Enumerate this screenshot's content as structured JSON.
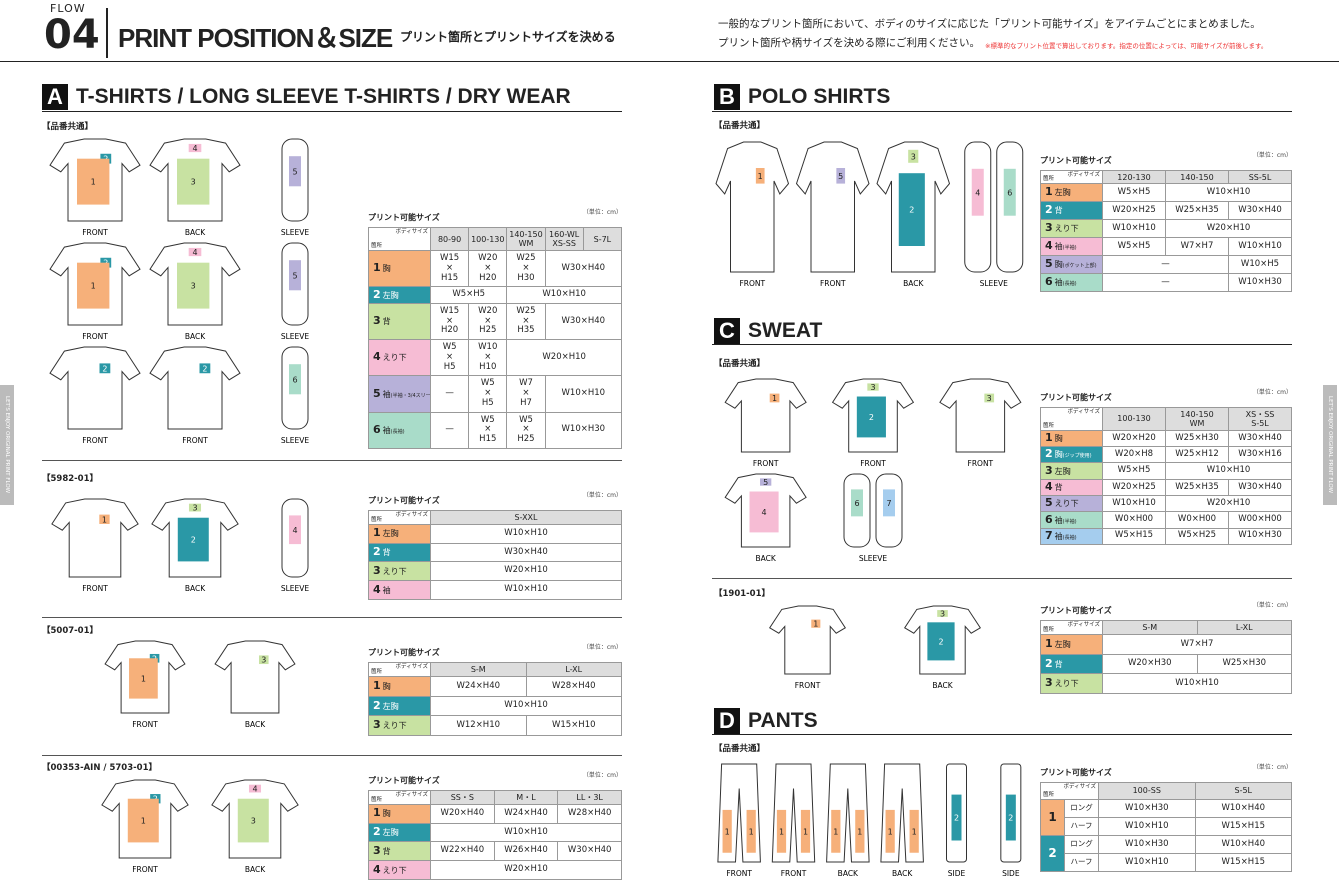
{
  "header": {
    "flow": "FLOW",
    "number": "04",
    "title": "PRINT POSITION＆SIZE",
    "subtitle": "プリント箇所とプリントサイズを決める",
    "description": [
      "一般的なプリント箇所において、ボディのサイズに応じた「プリント可能サイズ」をアイテムごとにまとめました。",
      "プリント箇所や柄サイズを決める際にご利用ください。"
    ],
    "note": "※標準的なプリント位置で算出しております。指定の位置によっては、可能サイズが前後します。"
  },
  "side_tab": "LET'S ENJOY ORIGINAL PRINT FLOW",
  "colors": {
    "1": "#f6b07a",
    "2": "#2a98a6",
    "3": "#c8e2a2",
    "4": "#f6bcd4",
    "5": "#b7b1d9",
    "6": "#a9dcc9",
    "7": "#a5cdee"
  },
  "sections": [
    {
      "letter": "A",
      "title": "T-SHIRTS / LONG SLEEVE T-SHIRTS / DRY WEAR",
      "groups": [
        {
          "label": "【品番共通】",
          "figures": [
            {
              "label": "FRONT",
              "marks": [
                "2",
                "1"
              ]
            },
            {
              "label": "BACK",
              "marks": [
                "4",
                "3"
              ]
            },
            {
              "label": "SLEEVE",
              "marks": [
                "5"
              ]
            },
            {
              "label": "FRONT",
              "marks": [
                "2",
                "1"
              ]
            },
            {
              "label": "BACK",
              "marks": [
                "4",
                "3"
              ]
            },
            {
              "label": "SLEEVE",
              "marks": [
                "5"
              ]
            },
            {
              "label": "FRONT",
              "marks": [
                "2"
              ]
            },
            {
              "label": "FRONT",
              "marks": [
                "2"
              ]
            },
            {
              "label": "SLEEVE",
              "marks": [
                "6"
              ]
            }
          ],
          "table": {
            "caption": "プリント可能サイズ",
            "unit": "（単位：cm）",
            "corner_top": "ボディサイズ",
            "corner_bottom": "箇所",
            "columns": [
              "80-90",
              "100-130",
              "140-150\nWM",
              "160-WL\nXS-SS",
              "S-7L"
            ],
            "rows": [
              {
                "no": "1",
                "name": "胸",
                "cells": [
                  "W15\n×\nH15",
                  "W20\n×\nH20",
                  "W25\n×\nH30",
                  {
                    "text": "W30×H40",
                    "span": 2
                  }
                ]
              },
              {
                "no": "2",
                "name": "左胸",
                "cells": [
                  {
                    "text": "W5×H5",
                    "span": 2
                  },
                  {
                    "text": "W10×H10",
                    "span": 3
                  }
                ]
              },
              {
                "no": "3",
                "name": "背",
                "cells": [
                  "W15\n×\nH20",
                  "W20\n×\nH25",
                  "W25\n×\nH35",
                  {
                    "text": "W30×H40",
                    "span": 2
                  }
                ]
              },
              {
                "no": "4",
                "name": "えり下",
                "cells": [
                  "W5\n×\nH5",
                  "W10\n×\nH10",
                  {
                    "text": "W20×H10",
                    "span": 3
                  }
                ]
              },
              {
                "no": "5",
                "name": "袖",
                "note": "(半袖・3/4スリーブ)",
                "cells": [
                  "—",
                  "W5\n×\nH5",
                  "W7\n×\nH7",
                  {
                    "text": "W10×H10",
                    "span": 2
                  }
                ]
              },
              {
                "no": "6",
                "name": "袖",
                "note": "(長袖)",
                "cells": [
                  "—",
                  "W5\n×\nH15",
                  "W5\n×\nH25",
                  {
                    "text": "W10×H30",
                    "span": 2
                  }
                ]
              }
            ]
          }
        },
        {
          "label": "【5982-01】",
          "figures": [
            {
              "label": "FRONT",
              "marks": [
                "1"
              ]
            },
            {
              "label": "BACK",
              "marks": [
                "3",
                "2"
              ]
            },
            {
              "label": "SLEEVE",
              "marks": [
                "4"
              ]
            }
          ],
          "table": {
            "caption": "プリント可能サイズ",
            "unit": "（単位：cm）",
            "corner_top": "ボディサイズ",
            "corner_bottom": "箇所",
            "columns": [
              "S-XXL"
            ],
            "rows": [
              {
                "no": "1",
                "name": "左胸",
                "cells": [
                  "W10×H10"
                ]
              },
              {
                "no": "2",
                "name": "背",
                "cells": [
                  "W30×H40"
                ]
              },
              {
                "no": "3",
                "name": "えり下",
                "cells": [
                  "W20×H10"
                ]
              },
              {
                "no": "4",
                "name": "袖",
                "cells": [
                  "W10×H10"
                ]
              }
            ]
          }
        },
        {
          "label": "【5007-01】",
          "figures": [
            {
              "label": "FRONT",
              "marks": [
                "2",
                "1"
              ]
            },
            {
              "label": "BACK",
              "marks": [
                "3"
              ]
            }
          ],
          "table": {
            "caption": "プリント可能サイズ",
            "unit": "（単位：cm）",
            "corner_top": "ボディサイズ",
            "corner_bottom": "箇所",
            "columns": [
              "S-M",
              "L-XL"
            ],
            "rows": [
              {
                "no": "1",
                "name": "胸",
                "cells": [
                  "W24×H40",
                  "W28×H40"
                ]
              },
              {
                "no": "2",
                "name": "左胸",
                "cells": [
                  {
                    "text": "W10×H10",
                    "span": 2
                  }
                ]
              },
              {
                "no": "3",
                "name": "えり下",
                "cells": [
                  "W12×H10",
                  "W15×H10"
                ]
              }
            ]
          }
        },
        {
          "label": "【00353-AIN / 5703-01】",
          "figures": [
            {
              "label": "FRONT",
              "marks": [
                "2",
                "1"
              ]
            },
            {
              "label": "BACK",
              "marks": [
                "4",
                "3"
              ]
            }
          ],
          "table": {
            "caption": "プリント可能サイズ",
            "unit": "（単位：cm）",
            "corner_top": "ボディサイズ",
            "corner_bottom": "箇所",
            "columns": [
              "SS・S",
              "M・L",
              "LL・3L"
            ],
            "rows": [
              {
                "no": "1",
                "name": "胸",
                "cells": [
                  "W20×H40",
                  "W24×H40",
                  "W28×H40"
                ]
              },
              {
                "no": "2",
                "name": "左胸",
                "cells": [
                  {
                    "text": "W10×H10",
                    "span": 3
                  }
                ]
              },
              {
                "no": "3",
                "name": "背",
                "cells": [
                  "W22×H40",
                  "W26×H40",
                  "W30×H40"
                ]
              },
              {
                "no": "4",
                "name": "えり下",
                "cells": [
                  {
                    "text": "W20×H10",
                    "span": 3
                  }
                ]
              }
            ]
          }
        }
      ]
    },
    {
      "letter": "B",
      "title": "POLO SHIRTS",
      "groups": [
        {
          "label": "【品番共通】",
          "figures": [
            {
              "label": "FRONT",
              "marks": [
                "1"
              ]
            },
            {
              "label": "FRONT",
              "marks": [
                "5"
              ]
            },
            {
              "label": "BACK",
              "marks": [
                "3",
                "2"
              ]
            },
            {
              "label": "SLEEVE",
              "marks": [
                "4",
                "6"
              ]
            }
          ],
          "table": {
            "caption": "プリント可能サイズ",
            "unit": "（単位：cm）",
            "corner_top": "ボディサイズ",
            "corner_bottom": "箇所",
            "columns": [
              "120-130",
              "140-150",
              "SS-5L"
            ],
            "rows": [
              {
                "no": "1",
                "name": "左胸",
                "cells": [
                  "W5×H5",
                  {
                    "text": "W10×H10",
                    "span": 2
                  }
                ]
              },
              {
                "no": "2",
                "name": "背",
                "cells": [
                  "W20×H25",
                  "W25×H35",
                  "W30×H40"
                ]
              },
              {
                "no": "3",
                "name": "えり下",
                "cells": [
                  "W10×H10",
                  {
                    "text": "W20×H10",
                    "span": 2
                  }
                ]
              },
              {
                "no": "4",
                "name": "袖",
                "note": "(半袖)",
                "cells": [
                  "W5×H5",
                  "W7×H7",
                  "W10×H10"
                ]
              },
              {
                "no": "5",
                "name": "胸",
                "note": "(ポケット上部)",
                "cells": [
                  {
                    "text": "—",
                    "span": 2
                  },
                  "W10×H5"
                ]
              },
              {
                "no": "6",
                "name": "袖",
                "note": "(長袖)",
                "cells": [
                  {
                    "text": "—",
                    "span": 2
                  },
                  "W10×H30"
                ]
              }
            ]
          }
        }
      ]
    },
    {
      "letter": "C",
      "title": "SWEAT",
      "groups": [
        {
          "label": "【品番共通】",
          "figures": [
            {
              "label": "FRONT",
              "marks": [
                "1"
              ]
            },
            {
              "label": "FRONT",
              "marks": [
                "3",
                "2"
              ]
            },
            {
              "label": "FRONT",
              "marks": [
                "3"
              ]
            },
            {
              "label": "BACK",
              "marks": [
                "5",
                "4"
              ]
            },
            {
              "label": "SLEEVE",
              "marks": [
                "6",
                "7"
              ]
            }
          ],
          "table": {
            "caption": "プリント可能サイズ",
            "unit": "（単位：cm）",
            "corner_top": "ボディサイズ",
            "corner_bottom": "箇所",
            "columns": [
              "100-130",
              "140-150\nWM",
              "XS・SS\nS-5L"
            ],
            "rows": [
              {
                "no": "1",
                "name": "胸",
                "cells": [
                  "W20×H20",
                  "W25×H30",
                  "W30×H40"
                ]
              },
              {
                "no": "2",
                "name": "胸",
                "note": "(ジップ使用)",
                "cells": [
                  "W20×H8",
                  "W25×H12",
                  "W30×H16"
                ]
              },
              {
                "no": "3",
                "name": "左胸",
                "cells": [
                  "W5×H5",
                  {
                    "text": "W10×H10",
                    "span": 2
                  }
                ]
              },
              {
                "no": "4",
                "name": "背",
                "cells": [
                  "W20×H25",
                  "W25×H35",
                  "W30×H40"
                ]
              },
              {
                "no": "5",
                "name": "えり下",
                "cells": [
                  "W10×H10",
                  {
                    "text": "W20×H10",
                    "span": 2
                  }
                ]
              },
              {
                "no": "6",
                "name": "袖",
                "note": "(半袖)",
                "cells": [
                  "W0×H00",
                  "W0×H00",
                  "W00×H00"
                ]
              },
              {
                "no": "7",
                "name": "袖",
                "note": "(長袖)",
                "cells": [
                  "W5×H15",
                  "W5×H25",
                  "W10×H30"
                ]
              }
            ]
          }
        },
        {
          "label": "【1901-01】",
          "figures": [
            {
              "label": "FRONT",
              "marks": [
                "1"
              ]
            },
            {
              "label": "BACK",
              "marks": [
                "3",
                "2"
              ]
            }
          ],
          "table": {
            "caption": "プリント可能サイズ",
            "unit": "（単位：cm）",
            "corner_top": "ボディサイズ",
            "corner_bottom": "箇所",
            "columns": [
              "S-M",
              "L-XL"
            ],
            "rows": [
              {
                "no": "1",
                "name": "左胸",
                "cells": [
                  {
                    "text": "W7×H7",
                    "span": 2
                  }
                ]
              },
              {
                "no": "2",
                "name": "背",
                "cells": [
                  "W20×H30",
                  "W25×H30"
                ]
              },
              {
                "no": "3",
                "name": "えり下",
                "cells": [
                  {
                    "text": "W10×H10",
                    "span": 2
                  }
                ]
              }
            ]
          }
        }
      ]
    },
    {
      "letter": "D",
      "title": "PANTS",
      "groups": [
        {
          "label": "【品番共通】",
          "figures": [
            {
              "label": "FRONT",
              "marks": [
                "1",
                "1"
              ]
            },
            {
              "label": "FRONT",
              "marks": [
                "1",
                "1"
              ]
            },
            {
              "label": "BACK",
              "marks": [
                "1",
                "1"
              ]
            },
            {
              "label": "BACK",
              "marks": [
                "1",
                "1"
              ]
            },
            {
              "label": "SIDE",
              "marks": [
                "2"
              ]
            },
            {
              "label": "SIDE",
              "marks": [
                "2"
              ]
            }
          ],
          "table": {
            "caption": "プリント可能サイズ",
            "unit": "（単位：cm）",
            "corner_top": "ボディサイズ",
            "corner_bottom": "箇所",
            "columns": [
              "100-SS",
              "S-5L"
            ],
            "rows": [
              {
                "no": "1",
                "name": "ロング",
                "cells": [
                  "W10×H30",
                  "W10×H40"
                ]
              },
              {
                "name": "ハーフ",
                "cells": [
                  "W10×H10",
                  "W15×H15"
                ]
              },
              {
                "no": "2",
                "name": "ロング",
                "cells": [
                  "W10×H30",
                  "W10×H40"
                ]
              },
              {
                "name": "ハーフ",
                "cells": [
                  "W10×H10",
                  "W15×H15"
                ]
              }
            ]
          }
        }
      ]
    }
  ]
}
